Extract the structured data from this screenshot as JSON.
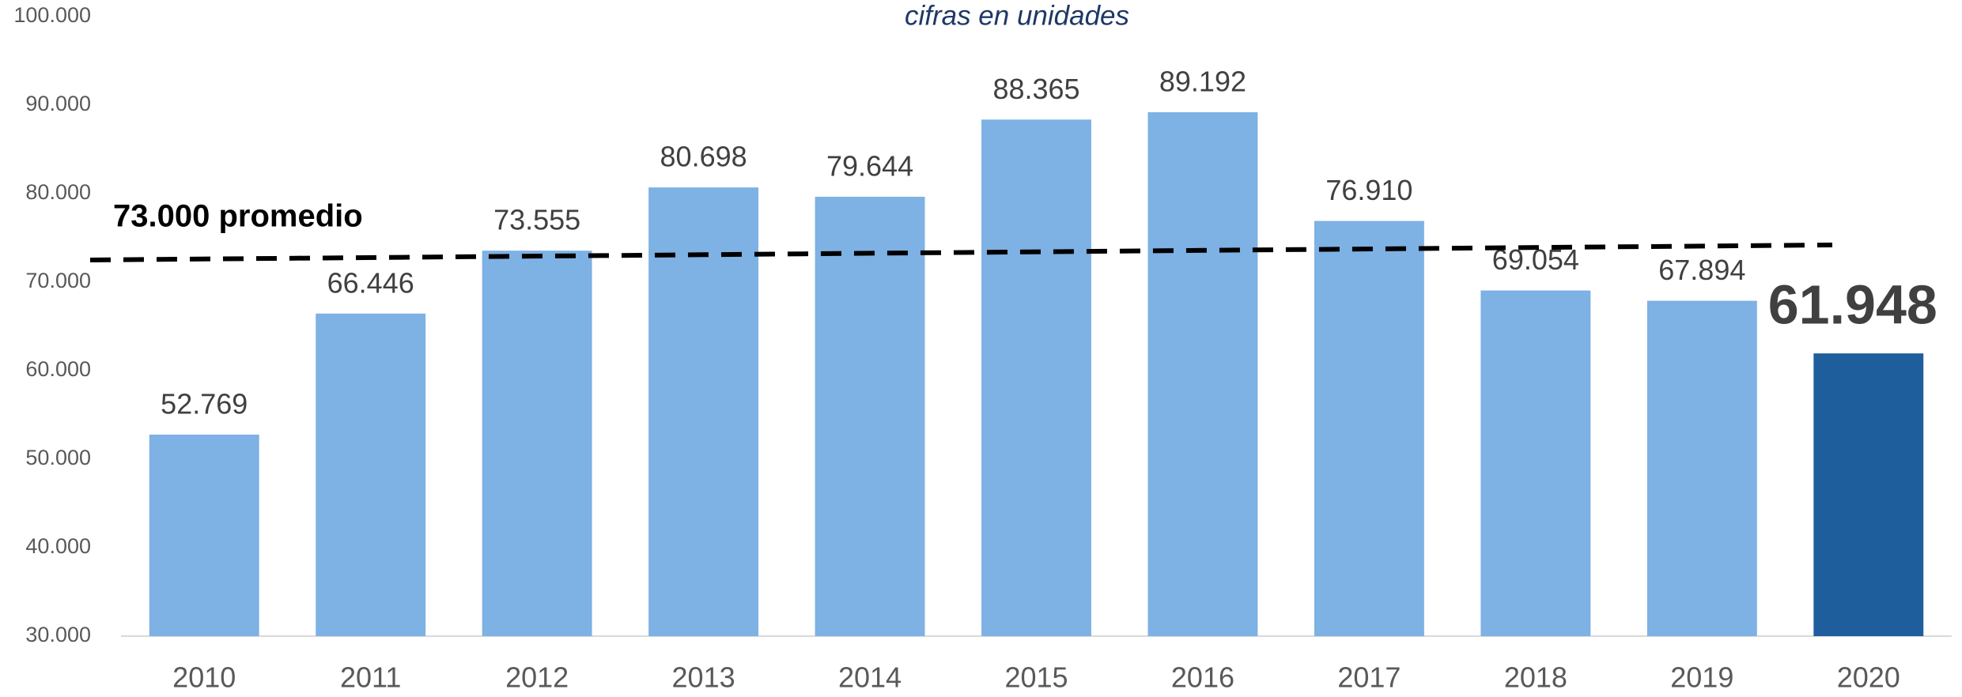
{
  "chart_data": {
    "type": "bar",
    "subtitle": "cifras en unidades",
    "annotation": "73.000 promedio",
    "categories": [
      "2010",
      "2011",
      "2012",
      "2013",
      "2014",
      "2015",
      "2016",
      "2017",
      "2018",
      "2019",
      "2020"
    ],
    "values": [
      52769,
      66446,
      73555,
      80698,
      79644,
      88365,
      89192,
      76910,
      69054,
      67894,
      61948
    ],
    "value_labels": [
      "52.769",
      "66.446",
      "73.555",
      "80.698",
      "79.644",
      "88.365",
      "89.192",
      "76.910",
      "69.054",
      "67.894",
      "61.948"
    ],
    "colors": [
      "#7eb1e4",
      "#7eb1e4",
      "#7eb1e4",
      "#7eb1e4",
      "#7eb1e4",
      "#7eb1e4",
      "#7eb1e4",
      "#7eb1e4",
      "#7eb1e4",
      "#7eb1e4",
      "#1f5e9c"
    ],
    "trendline": {
      "values": [
        72500,
        74200
      ],
      "color": "#000000"
    },
    "ylim": [
      30000,
      100000
    ],
    "yticks": [
      {
        "value": 30000,
        "label": "30.000"
      },
      {
        "value": 40000,
        "label": "40.000"
      },
      {
        "value": 50000,
        "label": "50.000"
      },
      {
        "value": 60000,
        "label": "60.000"
      },
      {
        "value": 70000,
        "label": "70.000"
      },
      {
        "value": 80000,
        "label": "80.000"
      },
      {
        "value": 90000,
        "label": "90.000"
      },
      {
        "value": 100000,
        "label": "100.000"
      }
    ],
    "grid": false
  }
}
